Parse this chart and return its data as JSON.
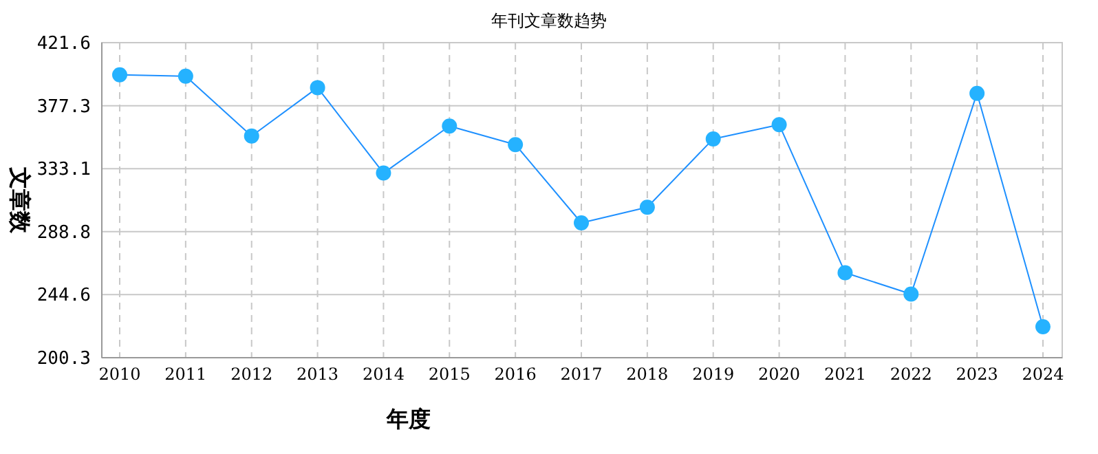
{
  "chart_data": {
    "type": "line",
    "title": "年刊文章数趋势",
    "xlabel": "年度",
    "ylabel": "文章数",
    "categories": [
      "2010",
      "2011",
      "2012",
      "2013",
      "2014",
      "2015",
      "2016",
      "2017",
      "2018",
      "2019",
      "2020",
      "2021",
      "2022",
      "2023",
      "2024"
    ],
    "series": [
      {
        "color": "#1e90ff",
        "values": [
          399,
          398,
          356,
          390,
          330,
          363,
          350,
          295,
          306,
          354,
          364,
          260,
          245,
          386,
          222
        ]
      }
    ],
    "ylim": [
      200.3,
      421.6
    ],
    "yticks": [
      200.3,
      244.6,
      288.8,
      333.1,
      377.3,
      421.6
    ],
    "grid": true,
    "marker": "circle"
  }
}
